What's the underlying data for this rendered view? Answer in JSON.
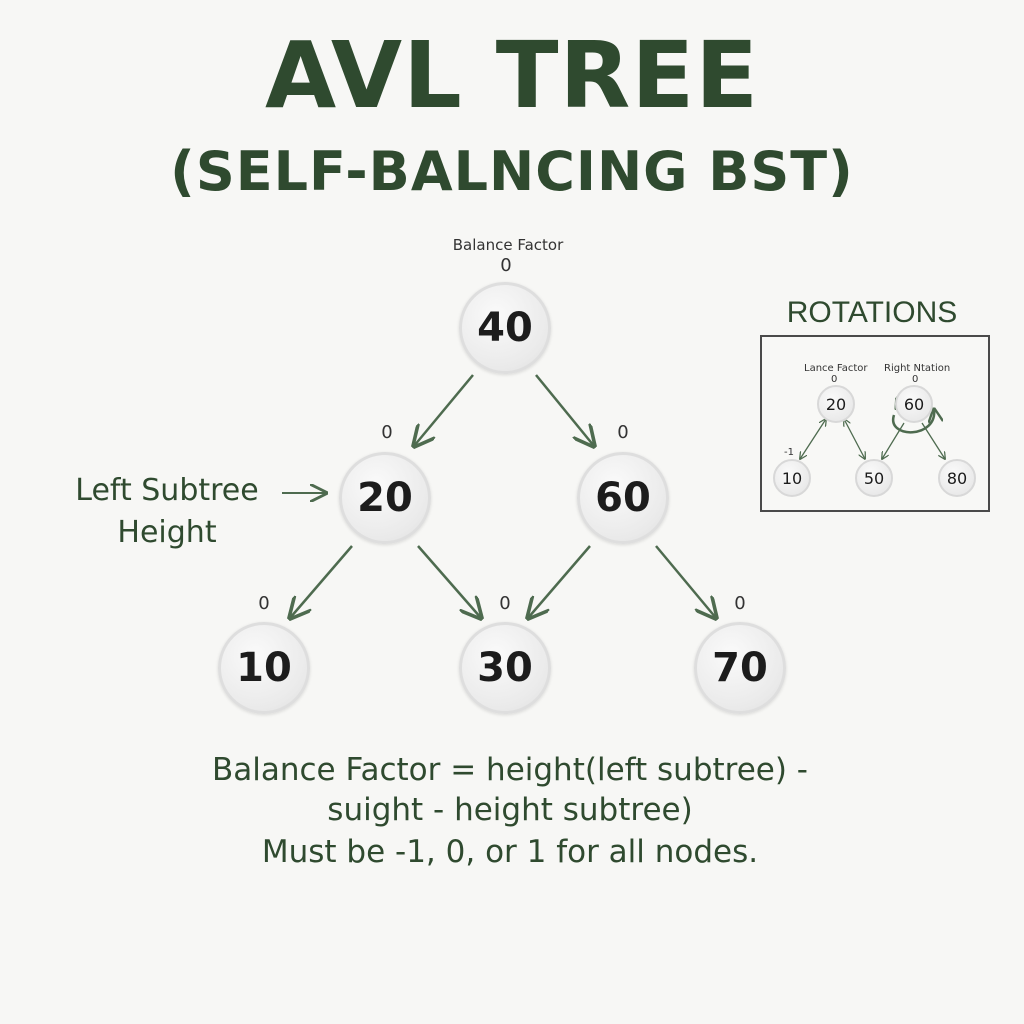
{
  "title": "AVL TREE",
  "subtitle": "(SELF-BALNCING BST)",
  "balance_factor_caption": "Balance Factor",
  "nodes": {
    "n40": {
      "value": "40",
      "bf": "0"
    },
    "n20": {
      "value": "20",
      "bf": "0"
    },
    "n60": {
      "value": "60",
      "bf": "0"
    },
    "n10": {
      "value": "10",
      "bf": "0"
    },
    "n30": {
      "value": "30",
      "bf": "0"
    },
    "n70": {
      "value": "70",
      "bf": "0"
    }
  },
  "side_label": {
    "line1": "Left Subtree",
    "line2": "Height"
  },
  "formula": {
    "line1": "Balance Factor = height(left subtree) -",
    "line2": "suight - height subtree)",
    "line3": "Must be -1, 0, or 1 for all nodes."
  },
  "rotations": {
    "title": "ROTATIONS",
    "left_caption": "Lance Factor",
    "right_caption": "Right Ntation",
    "bf_20": "0",
    "bf_60": "0",
    "side_mark": "-1",
    "nodes": {
      "a": "20",
      "b": "60",
      "c": "10",
      "d": "50",
      "e": "80"
    }
  },
  "colors": {
    "ink": "#2f4a2f",
    "arrow": "#4e6b4f"
  }
}
